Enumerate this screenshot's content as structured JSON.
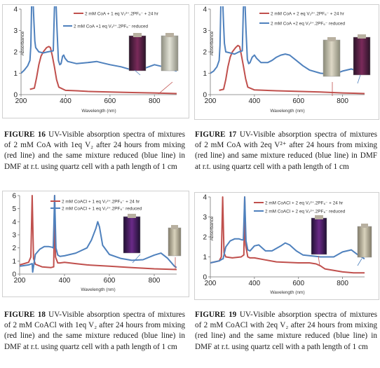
{
  "figures": [
    {
      "chart_data": {
        "type": "line",
        "xlabel": "Wavelength (nm)",
        "ylabel": "Absorbance",
        "xlim": [
          200,
          900
        ],
        "ylim": [
          0,
          4
        ],
        "xticks": [
          200,
          400,
          600,
          800
        ],
        "yticks": [
          0,
          1,
          2,
          3,
          4
        ],
        "series": [
          {
            "name": "2 mM CoA + 1 eq V₂²⁺.2PF₆⁻ + 24 hr",
            "color": "#c0504d",
            "x": [
              240,
              260,
              270,
              280,
              290,
              300,
              315,
              325,
              332,
              340,
              350,
              360,
              370,
              400,
              450,
              500,
              600,
              700,
              800,
              900
            ],
            "y": [
              0.25,
              0.3,
              0.8,
              1.4,
              1.8,
              2.0,
              2.2,
              2.25,
              2.2,
              1.85,
              1.3,
              0.7,
              0.35,
              0.2,
              0.18,
              0.15,
              0.12,
              0.1,
              0.08,
              0.05
            ]
          },
          {
            "name": "2 mM CoA +1 eq V₂²⁺.2PF₆⁻ reduced",
            "color": "#4f81bd",
            "x": [
              200,
              215,
              230,
              240,
              244,
              248,
              250,
              254,
              258,
              262,
              266,
              280,
              300,
              320,
              345,
              350,
              353,
              357,
              362,
              368,
              374,
              380,
              387,
              392,
              398,
              410,
              450,
              500,
              540,
              560,
              600,
              650,
              700,
              760,
              800,
              840,
              870,
              900
            ],
            "y": [
              1.0,
              1.15,
              1.35,
              1.6,
              2.3,
              4.4,
              4.5,
              4.4,
              3.4,
              2.5,
              2.2,
              2.0,
              1.95,
              2.0,
              2.05,
              4.0,
              4.5,
              4.4,
              3.0,
              1.6,
              1.4,
              1.45,
              1.8,
              1.85,
              1.7,
              1.55,
              1.45,
              1.5,
              1.55,
              1.5,
              1.4,
              1.3,
              1.15,
              1.25,
              1.4,
              1.3,
              1.2,
              1.1
            ]
          }
        ]
      },
      "caption_label": "FIGURE 16",
      "caption_text": "UV-Visible absorption spectra of mixtures of 2 mM CoA with 1eq V₂ after 24 hours from mixing (red line) and the same mixture reduced (blue line) in DMF at r.t. using quartz cell with a path length of 1 cm"
    },
    {
      "chart_data": {
        "type": "line",
        "xlabel": "Wavelength (nm)",
        "ylabel": "Absorbance",
        "xlim": [
          200,
          900
        ],
        "ylim": [
          0,
          4
        ],
        "xticks": [
          200,
          400,
          600,
          800
        ],
        "yticks": [
          0,
          1,
          2,
          3,
          4
        ],
        "series": [
          {
            "name": "2 mM CoA + 2 eq V₂²⁺.2PF₆⁻ + 24 hr",
            "color": "#c0504d",
            "x": [
              240,
              260,
              270,
              280,
              290,
              300,
              315,
              325,
              333,
              340,
              350,
              360,
              370,
              400,
              450,
              500,
              600,
              700,
              800,
              900
            ],
            "y": [
              0.2,
              0.25,
              0.7,
              1.3,
              1.75,
              2.0,
              2.2,
              2.3,
              2.25,
              1.9,
              1.35,
              0.75,
              0.35,
              0.22,
              0.2,
              0.18,
              0.15,
              0.12,
              0.08,
              0.05
            ]
          },
          {
            "name": "2 mM CoA +2 eq V₂²⁺.2PF₆⁻ reduced",
            "color": "#4f81bd",
            "x": [
              200,
              215,
              230,
              240,
              244,
              248,
              252,
              256,
              260,
              264,
              270,
              290,
              310,
              330,
              345,
              350,
              353,
              357,
              362,
              368,
              374,
              380,
              390,
              400,
              410,
              430,
              460,
              480,
              500,
              520,
              540,
              560,
              590,
              620,
              650,
              700,
              760,
              800,
              840,
              870,
              900
            ],
            "y": [
              1.0,
              1.1,
              1.3,
              1.6,
              2.3,
              4.4,
              4.5,
              4.4,
              3.3,
              2.4,
              2.0,
              1.95,
              1.9,
              2.0,
              2.05,
              4.0,
              4.5,
              4.4,
              3.0,
              1.65,
              1.45,
              1.5,
              1.75,
              1.85,
              1.7,
              1.5,
              1.5,
              1.6,
              1.75,
              1.85,
              1.9,
              1.85,
              1.6,
              1.35,
              1.15,
              1.0,
              0.95,
              1.1,
              1.2,
              1.1,
              1.0
            ]
          }
        ]
      },
      "caption_label": "FIGURE 17",
      "caption_text": "UV-Visible absorption spectra of mixtures of 2 mM CoA with 2eq V²⁺ after 24 hours from mixing (red line) and same mixture reduced (blue line) in DMF at r.t. using quartz cell with a path length of 1 cm"
    },
    {
      "chart_data": {
        "type": "line",
        "xlabel": "Wavelength (nm)",
        "ylabel": "",
        "xlim": [
          200,
          900
        ],
        "ylim": [
          0,
          6
        ],
        "xticks": [
          200,
          400,
          600,
          800
        ],
        "yticks": [
          0,
          1,
          2,
          3,
          4,
          5,
          6
        ],
        "series": [
          {
            "name": "2 mM CoACl + 1 eq V₂²⁺.2PF₆⁻ + 24 hr",
            "color": "#c0504d",
            "x": [
              200,
              220,
              240,
              250,
              256,
              262,
              270,
              300,
              340,
              352,
              356,
              360,
              370,
              380,
              400,
              450,
              500,
              600,
              700,
              800,
              900
            ],
            "y": [
              0.7,
              0.8,
              0.9,
              1.3,
              6.0,
              1.2,
              0.75,
              0.55,
              0.5,
              0.55,
              6.0,
              1.3,
              0.85,
              0.85,
              0.9,
              0.8,
              0.7,
              0.6,
              0.5,
              0.4,
              0.35
            ]
          },
          {
            "name": "2 mM CoACl + 1 eq V₂²⁺.2PF₆⁻ reduced",
            "color": "#4f81bd",
            "x": [
              200,
              220,
              240,
              256,
              258,
              270,
              290,
              310,
              330,
              345,
              350,
              356,
              362,
              370,
              380,
              400,
              450,
              500,
              520,
              540,
              548,
              556,
              570,
              600,
              650,
              700,
              750,
              800,
              830,
              860,
              890,
              900
            ],
            "y": [
              0.6,
              0.65,
              0.7,
              0.8,
              0.15,
              1.5,
              1.9,
              2.1,
              2.1,
              2.05,
              2.0,
              6.0,
              2.0,
              1.45,
              1.35,
              1.4,
              1.6,
              2.0,
              2.6,
              3.5,
              4.0,
              3.6,
              2.2,
              1.5,
              1.2,
              1.05,
              1.1,
              1.45,
              1.6,
              1.2,
              0.6,
              0.5
            ]
          }
        ]
      },
      "caption_label": "FIGURE 18",
      "caption_text": "UV-Visible absorption spectra of mixtures of 2 mM CoACl with 1eq V₂ after 24 hours from mixing (red line) and the same mixture reduced (blue line) in DMF at r.t. using quartz cell with a path length of 1 cm"
    },
    {
      "chart_data": {
        "type": "line",
        "xlabel": "Wavelength (nm)",
        "ylabel": "Absorbance",
        "xlim": [
          200,
          900
        ],
        "ylim": [
          0,
          4
        ],
        "xticks": [
          200,
          400,
          600,
          800
        ],
        "yticks": [
          0,
          1,
          2,
          3,
          4
        ],
        "series": [
          {
            "name": "2 mM CoACl + 2 eq V₂²⁺.2PF₆⁻ + 24 hr",
            "color": "#c0504d",
            "x": [
              200,
              220,
              240,
              250,
              256,
              262,
              270,
              300,
              340,
              352,
              356,
              360,
              370,
              380,
              400,
              450,
              500,
              600,
              650,
              680,
              700,
              720,
              800,
              850,
              900
            ],
            "y": [
              0.7,
              0.75,
              0.8,
              1.0,
              4.0,
              1.2,
              1.0,
              0.95,
              1.0,
              1.1,
              4.0,
              1.6,
              1.0,
              0.95,
              0.95,
              0.85,
              0.75,
              0.7,
              0.7,
              0.65,
              0.55,
              0.4,
              0.25,
              0.2,
              0.2
            ]
          },
          {
            "name": "2 mM CoACl + 2 eq V₂²⁺.2PF₆⁻ reduced",
            "color": "#4f81bd",
            "x": [
              200,
              220,
              240,
              256,
              258,
              270,
              290,
              310,
              330,
              345,
              350,
              356,
              362,
              370,
              380,
              400,
              420,
              450,
              480,
              520,
              540,
              560,
              590,
              620,
              660,
              700,
              760,
              800,
              840,
              870,
              900
            ],
            "y": [
              0.7,
              0.75,
              0.8,
              0.9,
              0.9,
              1.5,
              1.8,
              1.9,
              1.9,
              1.85,
              1.85,
              4.0,
              1.8,
              1.35,
              1.3,
              1.55,
              1.6,
              1.3,
              1.3,
              1.55,
              1.7,
              1.6,
              1.3,
              1.1,
              1.05,
              1.0,
              1.0,
              1.25,
              1.35,
              1.1,
              0.9
            ]
          }
        ]
      },
      "caption_label": "FIGURE 19",
      "caption_text": "UV-Visible absorption spectra of mixtures of 2 mM CoACl with 2eq V₂ after 24 hours from mixing (red line) and the same mixture reduced (blue line) in DMF at r.t. using quartz cell with a path length of 1 cm"
    }
  ]
}
